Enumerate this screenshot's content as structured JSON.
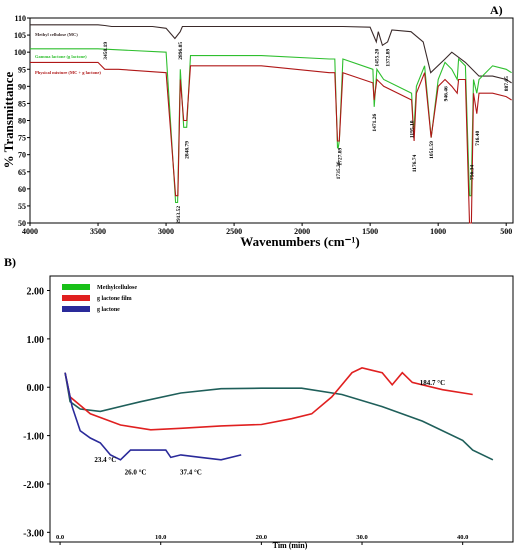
{
  "panel_labels": {
    "a": "A)",
    "b": "B)"
  },
  "colors": {
    "mc": "#3a2a2a",
    "glactone": "#2fbf2f",
    "mix": "#b01818",
    "film": "#e02020",
    "methylcellulose": "#18c018",
    "blue": "#2a2a9a",
    "teal": "#1f5f5a"
  },
  "chart_data": [
    {
      "type": "line",
      "xlabel": "Wavenumbers (cm⁻¹)",
      "ylabel": "% Transmittance",
      "xlim": [
        4000,
        450
      ],
      "ylim": [
        50,
        110
      ],
      "x_ticks": [
        "4000",
        "3500",
        "3000",
        "2500",
        "2000",
        "1500",
        "1000",
        "500"
      ],
      "y_ticks": [
        "110",
        "105",
        "100",
        "95",
        "90",
        "85",
        "80",
        "75",
        "70",
        "65",
        "60",
        "55",
        "50"
      ],
      "legend_placement": "top-left",
      "series": [
        {
          "name": "Methyl cellulose (MC)",
          "color": "#3a2a2a",
          "points": [
            [
              4000,
              108
            ],
            [
              3500,
              108
            ],
            [
              3450,
              107.8
            ],
            [
              3400,
              107.5
            ],
            [
              3100,
              107.5
            ],
            [
              3000,
              107
            ],
            [
              2935,
              104
            ],
            [
              2896,
              106
            ],
            [
              2880,
              107.5
            ],
            [
              2400,
              107.5
            ],
            [
              1700,
              107.5
            ],
            [
              1500,
              107.3
            ],
            [
              1455,
              103
            ],
            [
              1440,
              106
            ],
            [
              1410,
              102
            ],
            [
              1372,
              103
            ],
            [
              1340,
              106.5
            ],
            [
              1200,
              106
            ],
            [
              1110,
              103
            ],
            [
              1055,
              94
            ],
            [
              950,
              98
            ],
            [
              900,
              100
            ],
            [
              800,
              97
            ],
            [
              700,
              93
            ],
            [
              600,
              93
            ],
            [
              500,
              92
            ],
            [
              460,
              91
            ]
          ]
        },
        {
          "name": "Gamma lactone (g lactone)",
          "color": "#2fbf2f",
          "points": [
            [
              4000,
              101
            ],
            [
              3500,
              101
            ],
            [
              3000,
              100
            ],
            [
              2930,
              56
            ],
            [
              2915,
              56
            ],
            [
              2895,
              95
            ],
            [
              2870,
              78
            ],
            [
              2848,
              78
            ],
            [
              2820,
              99
            ],
            [
              2300,
              99
            ],
            [
              1800,
              98
            ],
            [
              1760,
              98
            ],
            [
              1740,
              72
            ],
            [
              1735,
              72
            ],
            [
              1727,
              74
            ],
            [
              1700,
              98
            ],
            [
              1480,
              95
            ],
            [
              1470,
              84
            ],
            [
              1450,
              95
            ],
            [
              1400,
              92
            ],
            [
              1195,
              88
            ],
            [
              1180,
              76
            ],
            [
              1160,
              90
            ],
            [
              1100,
              96
            ],
            [
              1051,
              75
            ],
            [
              1000,
              92
            ],
            [
              950,
              97
            ],
            [
              900,
              95
            ],
            [
              860,
              92
            ],
            [
              850,
              98
            ],
            [
              800,
              96
            ],
            [
              770,
              58
            ],
            [
              758,
              58
            ],
            [
              740,
              92
            ],
            [
              716,
              88
            ],
            [
              700,
              92
            ],
            [
              600,
              96
            ],
            [
              500,
              95
            ],
            [
              460,
              94
            ]
          ]
        },
        {
          "name": "Physical mixture (MC + g lactone)",
          "color": "#b01818",
          "points": [
            [
              4000,
              97
            ],
            [
              3500,
              97
            ],
            [
              3450,
              95
            ],
            [
              3350,
              95
            ],
            [
              3000,
              94
            ],
            [
              2930,
              58
            ],
            [
              2913,
              58
            ],
            [
              2895,
              92
            ],
            [
              2870,
              80
            ],
            [
              2848,
              80
            ],
            [
              2820,
              96
            ],
            [
              2300,
              96
            ],
            [
              1800,
              94
            ],
            [
              1760,
              94
            ],
            [
              1740,
              74
            ],
            [
              1727,
              74
            ],
            [
              1700,
              94
            ],
            [
              1480,
              91
            ],
            [
              1471,
              86
            ],
            [
              1450,
              92
            ],
            [
              1400,
              90
            ],
            [
              1195,
              86
            ],
            [
              1177,
              74
            ],
            [
              1160,
              88
            ],
            [
              1100,
              94
            ],
            [
              1052,
              75
            ],
            [
              1000,
              90
            ],
            [
              950,
              92
            ],
            [
              900,
              90
            ],
            [
              860,
              88
            ],
            [
              850,
              92
            ],
            [
              800,
              92
            ],
            [
              770,
              50
            ],
            [
              756,
              50
            ],
            [
              740,
              88
            ],
            [
              716,
              82
            ],
            [
              700,
              88
            ],
            [
              600,
              88
            ],
            [
              500,
              87
            ],
            [
              460,
              86
            ]
          ]
        }
      ],
      "annotations": [
        {
          "text": "3450.19",
          "x": 3450,
          "y": 103
        },
        {
          "text": "2896.05",
          "x": 2896,
          "y": 103
        },
        {
          "text": "2913.52",
          "x": 2913,
          "y": 55
        },
        {
          "text": "2848.79",
          "x": 2848,
          "y": 74
        },
        {
          "text": "1735.26",
          "x": 1735,
          "y": 68
        },
        {
          "text": "1727.89",
          "x": 1727,
          "y": 72
        },
        {
          "text": "1455.20",
          "x": 1455,
          "y": 101
        },
        {
          "text": "1372.89",
          "x": 1372,
          "y": 101
        },
        {
          "text": "1471.26",
          "x": 1471,
          "y": 82
        },
        {
          "text": "1195.10",
          "x": 1195,
          "y": 80
        },
        {
          "text": "1176.74",
          "x": 1176,
          "y": 70
        },
        {
          "text": "1051.59",
          "x": 1051,
          "y": 74
        },
        {
          "text": "946.46",
          "x": 946,
          "y": 90
        },
        {
          "text": "756.34",
          "x": 756,
          "y": 67
        },
        {
          "text": "716.40",
          "x": 716,
          "y": 77
        },
        {
          "text": "887.65",
          "x": 500,
          "y": 93
        }
      ]
    },
    {
      "type": "line",
      "xlabel": "Tim (min)",
      "ylabel": "",
      "xlim": [
        -1,
        45
      ],
      "ylim": [
        -3.2,
        2.3
      ],
      "x_ticks": [
        "0.0",
        "10.0",
        "20.0",
        "30.0",
        "40.0"
      ],
      "y_ticks": [
        "2.00",
        "1.00",
        "0.00",
        "-1.00",
        "-2.00",
        "-3.00"
      ],
      "legend_placement": "top-left",
      "series": [
        {
          "name": "Methylcellulose",
          "color": "#1f5f5a",
          "points": [
            [
              0.5,
              0.3
            ],
            [
              1,
              -0.3
            ],
            [
              2,
              -0.45
            ],
            [
              4,
              -0.5
            ],
            [
              8,
              -0.3
            ],
            [
              12,
              -0.12
            ],
            [
              16,
              -0.03
            ],
            [
              20,
              -0.02
            ],
            [
              24,
              -0.02
            ],
            [
              28,
              -0.15
            ],
            [
              32,
              -0.4
            ],
            [
              36,
              -0.7
            ],
            [
              40,
              -1.1
            ],
            [
              41,
              -1.3
            ],
            [
              43,
              -1.5
            ]
          ]
        },
        {
          "name": "g lactone film",
          "color": "#e02020",
          "points": [
            [
              0.5,
              0.3
            ],
            [
              1,
              -0.2
            ],
            [
              3,
              -0.55
            ],
            [
              6,
              -0.78
            ],
            [
              9,
              -0.88
            ],
            [
              12,
              -0.85
            ],
            [
              16,
              -0.8
            ],
            [
              20,
              -0.77
            ],
            [
              23,
              -0.65
            ],
            [
              25,
              -0.55
            ],
            [
              27,
              -0.2
            ],
            [
              29,
              0.3
            ],
            [
              30,
              0.4
            ],
            [
              31,
              0.35
            ],
            [
              32,
              0.3
            ],
            [
              33,
              0.05
            ],
            [
              34,
              0.3
            ],
            [
              35,
              0.1
            ],
            [
              38,
              -0.05
            ],
            [
              41,
              -0.15
            ]
          ]
        },
        {
          "name": "g lactone",
          "color": "#2a2a9a",
          "points": [
            [
              0.5,
              0.3
            ],
            [
              1.2,
              -0.4
            ],
            [
              2,
              -0.9
            ],
            [
              3,
              -1.05
            ],
            [
              4,
              -1.15
            ],
            [
              5,
              -1.4
            ],
            [
              6,
              -1.5
            ],
            [
              7,
              -1.3
            ],
            [
              9,
              -1.3
            ],
            [
              10.5,
              -1.3
            ],
            [
              11,
              -1.45
            ],
            [
              12,
              -1.4
            ],
            [
              14,
              -1.45
            ],
            [
              16,
              -1.5
            ],
            [
              18,
              -1.4
            ]
          ]
        }
      ],
      "annotations": [
        {
          "text": "23.4 °C",
          "x": 4.5,
          "y": -1.55
        },
        {
          "text": "26.0 °C",
          "x": 7.5,
          "y": -1.8
        },
        {
          "text": "37.4 °C",
          "x": 13,
          "y": -1.8
        },
        {
          "text": "184.7 °C",
          "x": 37,
          "y": 0.05
        }
      ]
    }
  ]
}
